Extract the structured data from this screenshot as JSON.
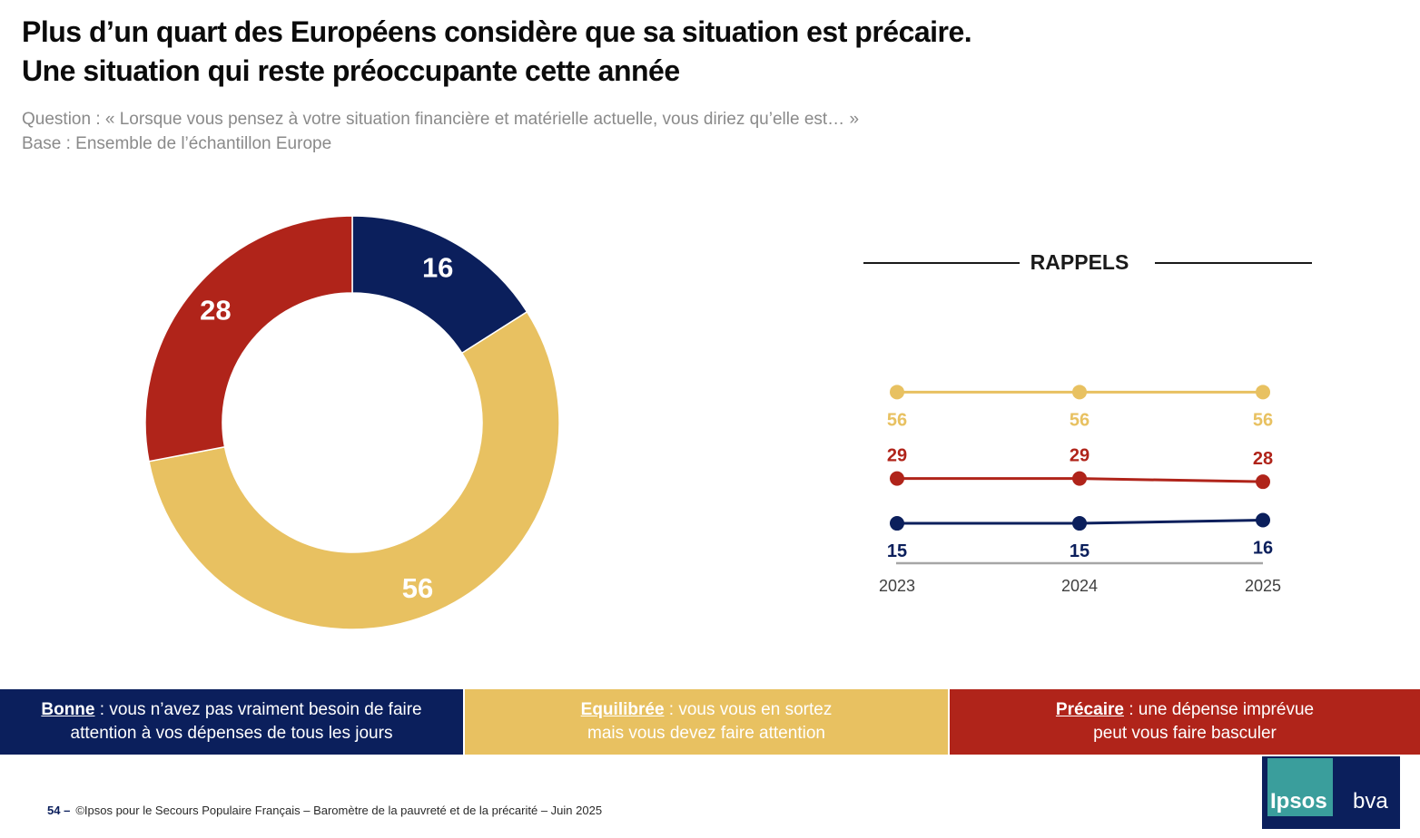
{
  "title": {
    "line1": "Plus d’un quart des Européens considère que sa situation est précaire.",
    "line2": "Une situation qui reste préoccupante cette année"
  },
  "subtitle": {
    "question": "Question : « Lorsque vous pensez à votre situation financière et matérielle actuelle, vous diriez qu’elle est… »",
    "base": "Base : Ensemble de l’échantillon Europe"
  },
  "colors": {
    "bonne": "#0b1f5c",
    "equilibree": "#e8c161",
    "precaire": "#b0241a",
    "axis": "#a6a6a6",
    "heading_line": "#1a1a1a"
  },
  "chart_data": [
    {
      "type": "pie",
      "categories": [
        "Bonne",
        "Equilibrée",
        "Précaire"
      ],
      "values": [
        16,
        56,
        28
      ],
      "labels": [
        "16",
        "56",
        "28"
      ],
      "colors": [
        "#0b1f5c",
        "#e8c161",
        "#b0241a"
      ],
      "donut": true
    },
    {
      "type": "line",
      "title": "RAPPELS",
      "x": [
        "2023",
        "2024",
        "2025"
      ],
      "series": [
        {
          "key": "equilibree",
          "values": [
            56,
            56,
            56
          ],
          "color": "#e8c161",
          "labels": [
            "56",
            "56",
            "56"
          ]
        },
        {
          "key": "precaire",
          "values": [
            29,
            29,
            28
          ],
          "color": "#b0241a",
          "labels": [
            "29",
            "29",
            "28"
          ]
        },
        {
          "key": "bonne",
          "values": [
            15,
            15,
            16
          ],
          "color": "#0b1f5c",
          "labels": [
            "15",
            "15",
            "16"
          ]
        }
      ]
    }
  ],
  "legend": {
    "bonne": {
      "term": "Bonne",
      "desc1": " : vous n’avez pas vraiment besoin de faire",
      "desc2": "attention à vos dépenses de tous les jours"
    },
    "equilibree": {
      "term": "Equilibrée",
      "desc1": " : vous vous en sortez",
      "desc2": "mais vous devez faire attention"
    },
    "precaire": {
      "term": "Précaire",
      "desc1": " : une dépense imprévue",
      "desc2": "peut vous faire basculer"
    }
  },
  "footer": {
    "page": "54 –",
    "text": "©Ipsos pour le Secours Populaire Français – Baromètre de la pauvreté et de la précarité – Juin 2025"
  },
  "logo": {
    "ipsos": "Ipsos",
    "bva": "bva"
  }
}
